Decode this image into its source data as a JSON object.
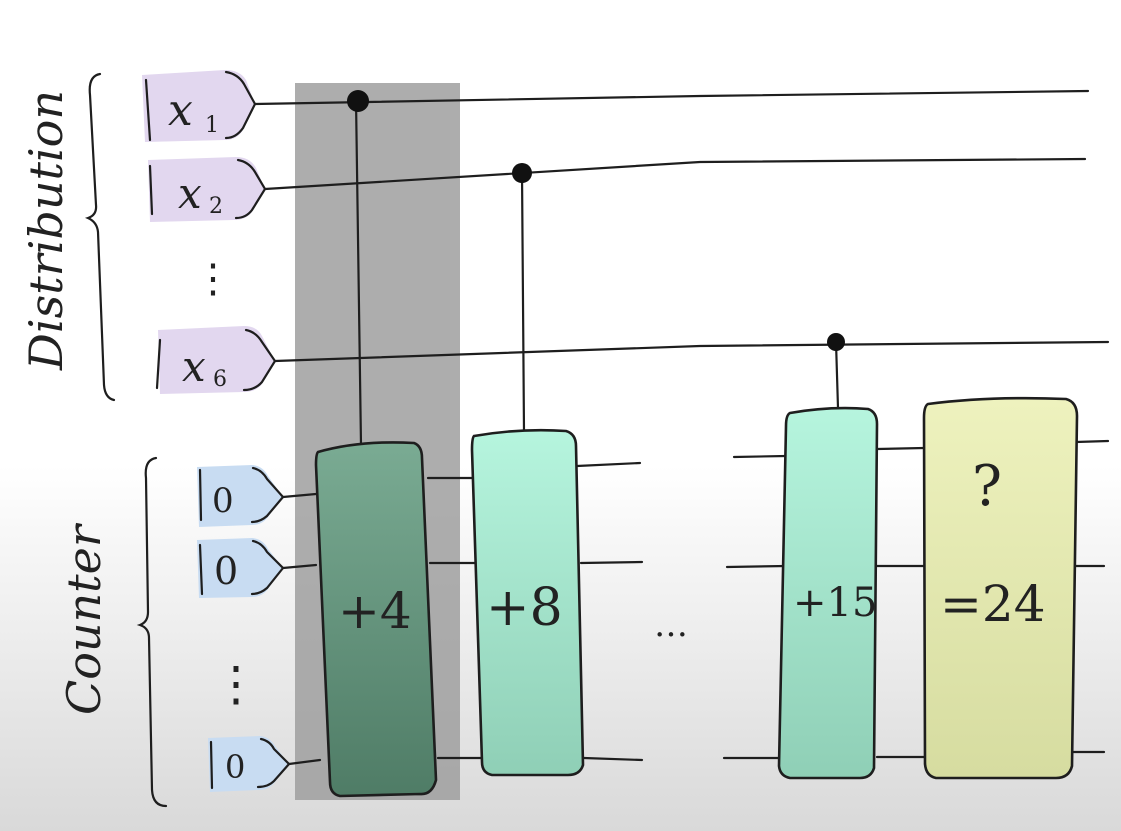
{
  "labels": {
    "distribution": "Distribution",
    "counter": "Counter"
  },
  "inputs": {
    "x1": "x",
    "x1_sub": "1",
    "x2": "x",
    "x2_sub": "2",
    "x6": "x",
    "x6_sub": "6",
    "zero_a": "0",
    "zero_b": "0",
    "zero_c": "0"
  },
  "gates": {
    "g1": "+4",
    "g2": "+8",
    "g3": "+15",
    "result_q": "?",
    "result": "=24"
  },
  "ellipsis": {
    "dist_dots": "⋮",
    "counter_dots": "⋮",
    "gates_dots": "…"
  },
  "colors": {
    "input_purple": "#e2d7ef",
    "input_blue": "#c8dcf2",
    "highlight": "#9f9f9f",
    "gate1_fill": "#6f9f88",
    "gate_mint": "#aeefd8",
    "result_fill": "#e4eab4"
  }
}
